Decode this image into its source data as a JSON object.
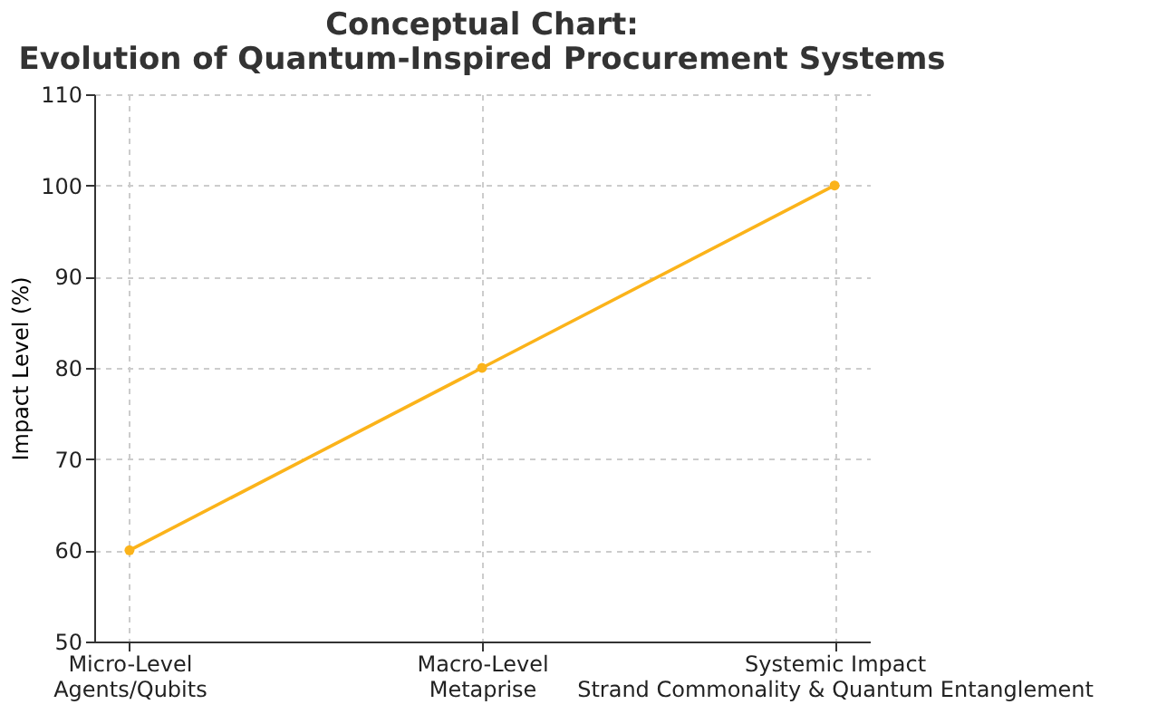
{
  "chart_data": {
    "type": "line",
    "title": "Conceptual Chart:\nEvolution of Quantum-Inspired Procurement Systems",
    "ylabel": "Impact Level (%)",
    "categories": [
      "Micro-Level\nAgents/Qubits",
      "Macro-Level\nMetaprise",
      "Systemic Impact\nStrand Commonality & Quantum Entanglement"
    ],
    "series": [
      {
        "color": "#fbb31a",
        "values": [
          60,
          80,
          100
        ]
      }
    ],
    "ylim": [
      50,
      110
    ],
    "yticks": [
      50,
      60,
      70,
      80,
      90,
      100,
      110
    ],
    "grid": true,
    "marker": "circle",
    "line_style": "solid"
  }
}
